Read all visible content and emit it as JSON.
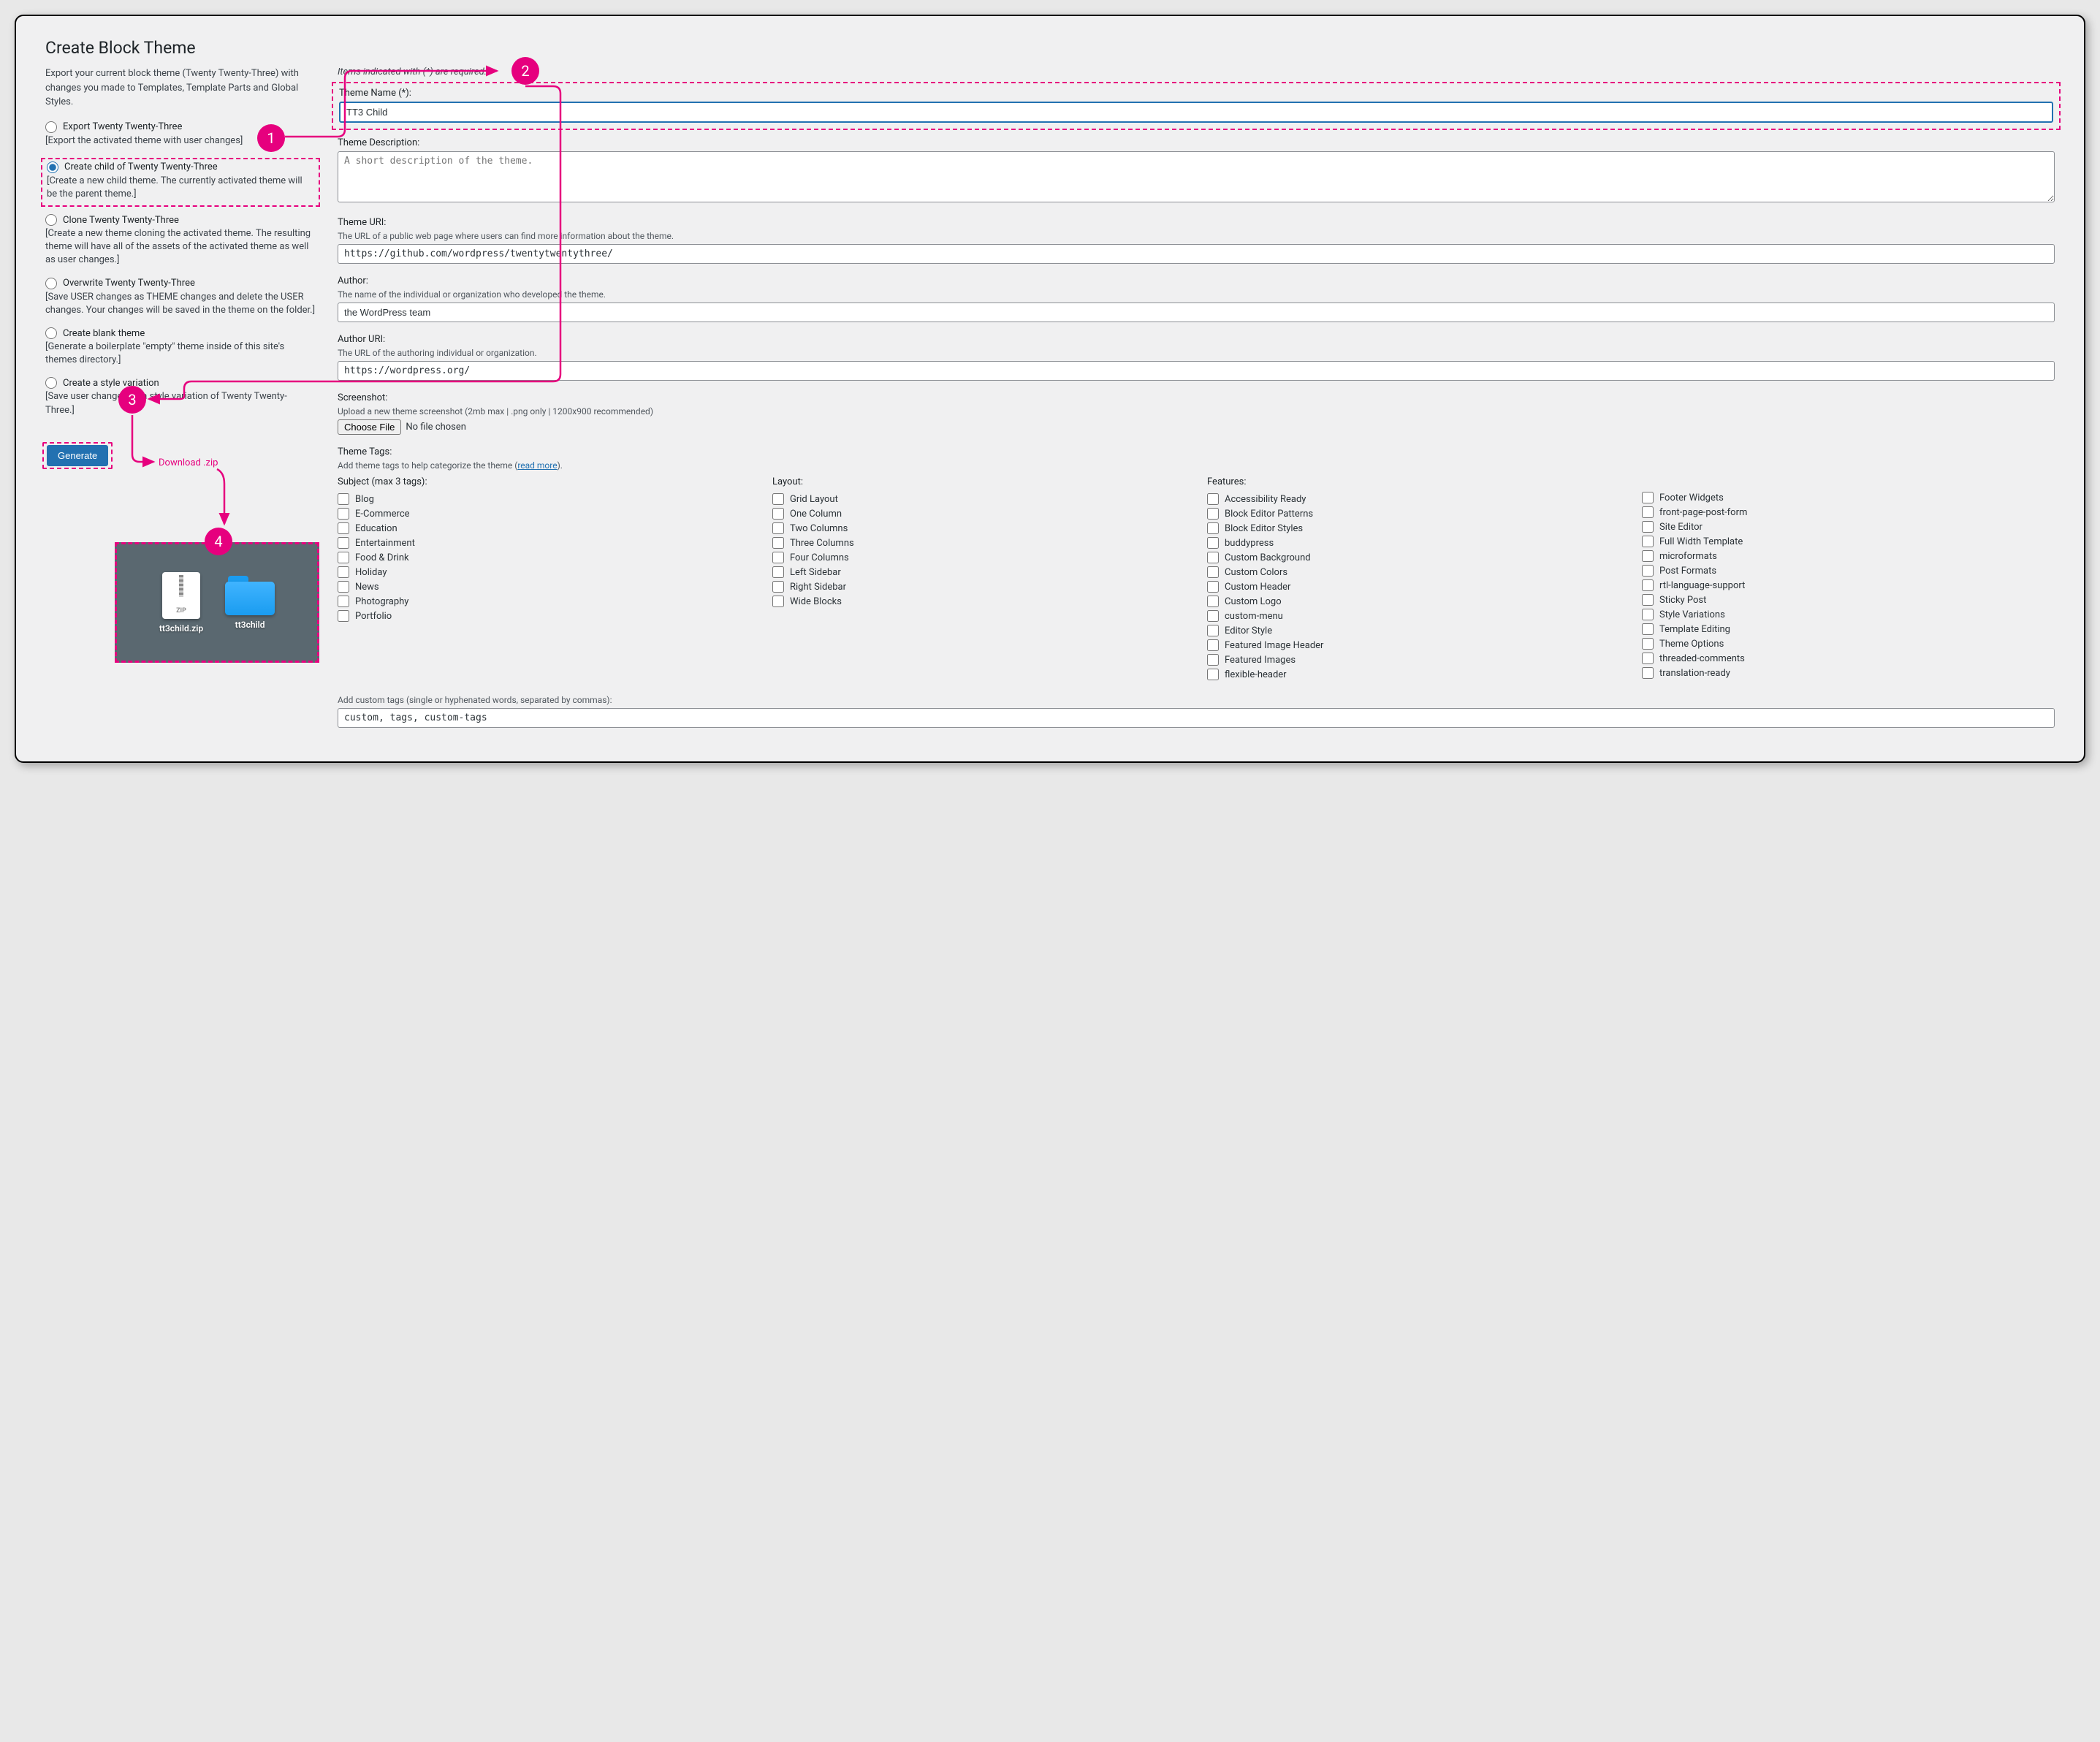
{
  "title": "Create Block Theme",
  "intro": "Export your current block theme (Twenty Twenty-Three) with changes you made to Templates, Template Parts and Global Styles.",
  "options": [
    {
      "label": "Export Twenty Twenty-Three",
      "desc": "[Export the activated theme with user changes]",
      "checked": false
    },
    {
      "label": "Create child of Twenty Twenty-Three",
      "desc": "[Create a new child theme. The currently activated theme will be the parent theme.]",
      "checked": true
    },
    {
      "label": "Clone Twenty Twenty-Three",
      "desc": "[Create a new theme cloning the activated theme. The resulting theme will have all of the assets of the activated theme as well as user changes.]",
      "checked": false
    },
    {
      "label": "Overwrite Twenty Twenty-Three",
      "desc": "[Save USER changes as THEME changes and delete the USER changes. Your changes will be saved in the theme on the folder.]",
      "checked": false
    },
    {
      "label": "Create blank theme",
      "desc": "[Generate a boilerplate \"empty\" theme inside of this site's themes directory.]",
      "checked": false
    },
    {
      "label": "Create a style variation",
      "desc": "[Save user changes as a style variation of Twenty Twenty-Three.]",
      "checked": false
    }
  ],
  "generate_label": "Generate",
  "required_note": "Items indicated with (*) are required.",
  "fields": {
    "name_label": "Theme Name (*):",
    "name_value": "TT3 Child",
    "desc_label": "Theme Description:",
    "desc_placeholder": "A short description of the theme.",
    "uri_label": "Theme URI:",
    "uri_help": "The URL of a public web page where users can find more information about the theme.",
    "uri_value": "https://github.com/wordpress/twentytwentythree/",
    "author_label": "Author:",
    "author_help": "The name of the individual or organization who developed the theme.",
    "author_value": "the WordPress team",
    "author_uri_label": "Author URI:",
    "author_uri_help": "The URL of the authoring individual or organization.",
    "author_uri_value": "https://wordpress.org/",
    "screenshot_label": "Screenshot:",
    "screenshot_help": "Upload a new theme screenshot (2mb max | .png only | 1200x900 recommended)",
    "choose_file": "Choose File",
    "no_file": "No file chosen",
    "tags_label": "Theme Tags:",
    "tags_help_prefix": "Add theme tags to help categorize the theme (",
    "tags_help_link": "read more",
    "tags_help_suffix": ").",
    "custom_tags_label": "Add custom tags (single or hyphenated words, separated by commas):",
    "custom_tags_value": "custom, tags, custom-tags"
  },
  "tag_columns": [
    {
      "header": "Subject (max 3 tags):",
      "items": [
        "Blog",
        "E-Commerce",
        "Education",
        "Entertainment",
        "Food & Drink",
        "Holiday",
        "News",
        "Photography",
        "Portfolio"
      ]
    },
    {
      "header": "Layout:",
      "items": [
        "Grid Layout",
        "One Column",
        "Two Columns",
        "Three Columns",
        "Four Columns",
        "Left Sidebar",
        "Right Sidebar",
        "Wide Blocks"
      ]
    },
    {
      "header": "Features:",
      "items": [
        "Accessibility Ready",
        "Block Editor Patterns",
        "Block Editor Styles",
        "buddypress",
        "Custom Background",
        "Custom Colors",
        "Custom Header",
        "Custom Logo",
        "custom-menu",
        "Editor Style",
        "Featured Image Header",
        "Featured Images",
        "flexible-header"
      ]
    },
    {
      "header": "",
      "items": [
        "Footer Widgets",
        "front-page-post-form",
        "Site Editor",
        "Full Width Template",
        "microformats",
        "Post Formats",
        "rtl-language-support",
        "Sticky Post",
        "Style Variations",
        "Template Editing",
        "Theme Options",
        "threaded-comments",
        "translation-ready"
      ]
    }
  ],
  "annotations": {
    "badge1": "1",
    "badge2": "2",
    "badge3": "3",
    "badge4": "4",
    "download_label": "Download .zip",
    "zip_name": "tt3child.zip",
    "folder_name": "tt3child",
    "zip_ext": "ZIP"
  },
  "colors": {
    "accent": "#e6007e",
    "primary_btn": "#2271b1",
    "bg": "#f0f0f1"
  }
}
